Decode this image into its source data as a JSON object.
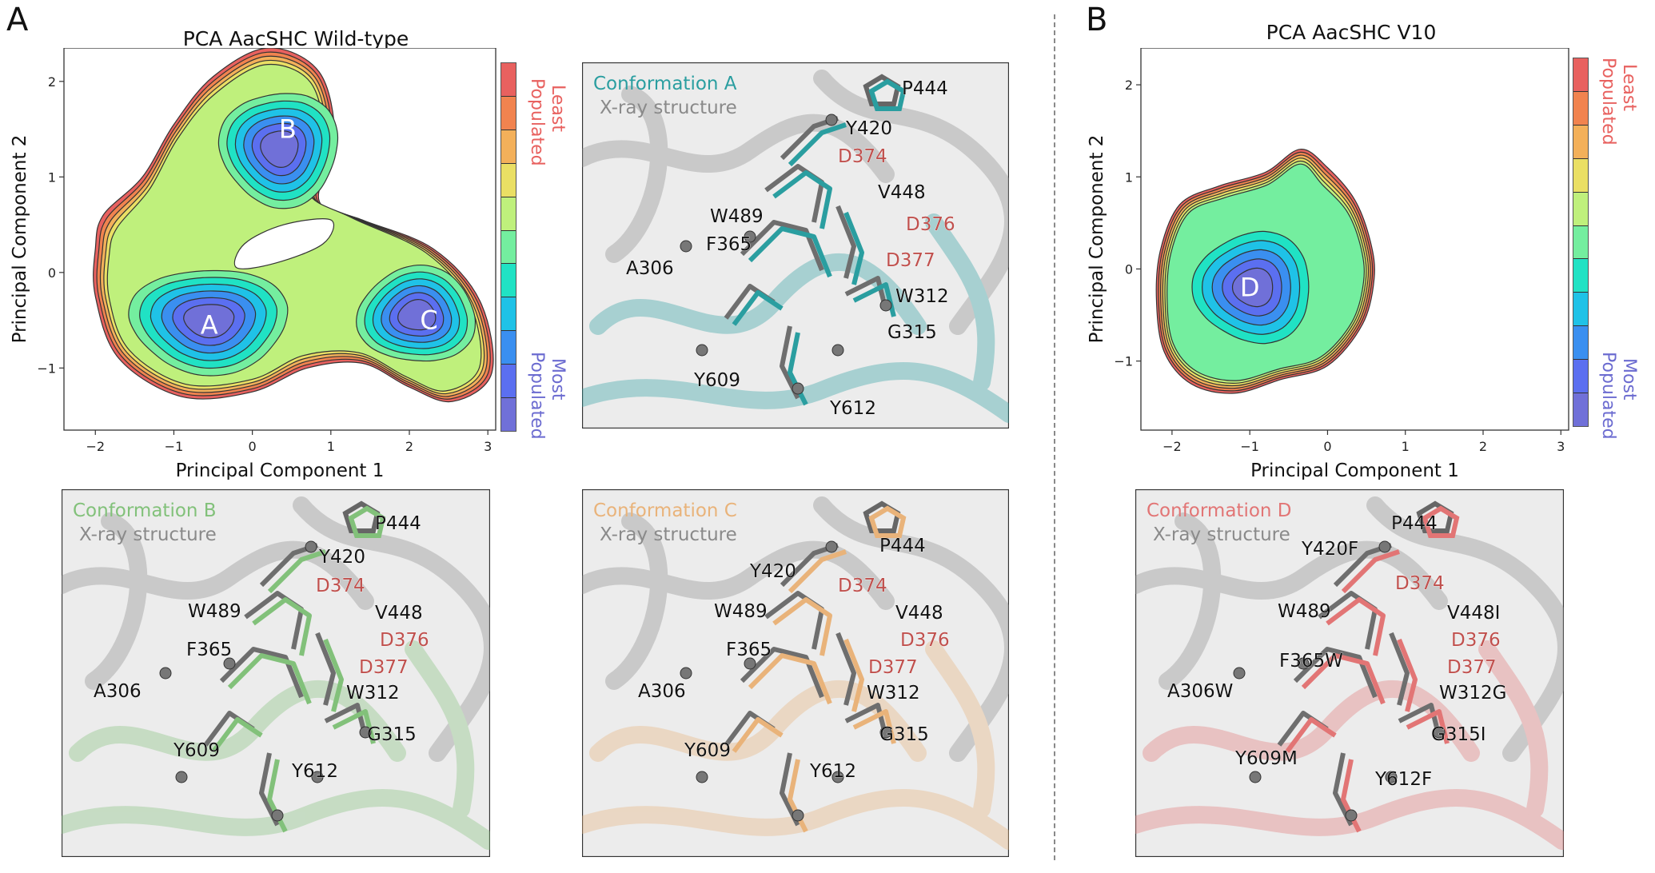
{
  "figure": {
    "panel_a_letter": "A",
    "panel_b_letter": "B",
    "pca_wt_title": "PCA AacSHC Wild-type",
    "pca_v10_title": "PCA AacSHC V10",
    "colorbar": {
      "top_label_1": "Least",
      "top_label_2": "Populated",
      "bottom_label_1": "Most",
      "bottom_label_2": "Populated",
      "colors": [
        "#e8615f",
        "#f1834f",
        "#f3b05a",
        "#eadf64",
        "#bff07c",
        "#74ee9f",
        "#20e2c4",
        "#1fc2e7",
        "#3a8ff0",
        "#5b6ff0",
        "#7070d8"
      ]
    },
    "contour_colors": [
      "#e8615f",
      "#f1834f",
      "#f3b05a",
      "#eadf64",
      "#bff07c",
      "#74ee9f",
      "#20e2c4",
      "#1fc2e7",
      "#3a8ff0",
      "#5b6ff0",
      "#7070d8"
    ],
    "structure_colors": {
      "A": "#2a9ea0",
      "B": "#82c17a",
      "C": "#e9b37a",
      "D": "#e27575",
      "xray": "#8a8a8a",
      "red_label": "#c0504d"
    }
  },
  "chart_data": [
    {
      "type": "contour",
      "title": "PCA AacSHC Wild-type",
      "xlabel": "Principal Component 1",
      "ylabel": "Principal Component 2",
      "xlim": [
        -2.4,
        3.1
      ],
      "ylim": [
        -1.65,
        2.35
      ],
      "xticks": [
        -2,
        -1,
        0,
        1,
        2,
        3
      ],
      "yticks": [
        -1,
        0,
        1,
        2
      ],
      "xtick_labels": [
        "−2",
        "−1",
        "0",
        "1",
        "2",
        "3"
      ],
      "ytick_labels": [
        "−1",
        "0",
        "1",
        "2"
      ],
      "levels": 11,
      "basins": [
        {
          "label": "A",
          "x": -0.55,
          "y": -0.55
        },
        {
          "label": "B",
          "x": 0.45,
          "y": 1.5
        },
        {
          "label": "C",
          "x": 2.25,
          "y": -0.5
        }
      ]
    },
    {
      "type": "contour",
      "title": "PCA AacSHC V10",
      "xlabel": "Principal Component 1",
      "ylabel": "Principal Component 2",
      "xlim": [
        -2.4,
        3.1
      ],
      "ylim": [
        -1.75,
        2.4
      ],
      "xticks": [
        -2,
        -1,
        0,
        1,
        2,
        3
      ],
      "yticks": [
        -1,
        0,
        1,
        2
      ],
      "xtick_labels": [
        "−2",
        "−1",
        "0",
        "1",
        "2",
        "3"
      ],
      "ytick_labels": [
        "−1",
        "0",
        "1",
        "2"
      ],
      "levels": 11,
      "basins": [
        {
          "label": "D",
          "x": -1.0,
          "y": -0.2
        }
      ]
    }
  ],
  "structures": [
    {
      "id": "conf-a",
      "legend_1": "Conformation A",
      "legend_2": "X-ray structure",
      "labels": [
        {
          "text": "P444",
          "kind": "black"
        },
        {
          "text": "Y420",
          "kind": "black"
        },
        {
          "text": "D374",
          "kind": "red"
        },
        {
          "text": "V448",
          "kind": "black"
        },
        {
          "text": "D376",
          "kind": "red"
        },
        {
          "text": "W489",
          "kind": "black"
        },
        {
          "text": "F365",
          "kind": "black"
        },
        {
          "text": "D377",
          "kind": "red"
        },
        {
          "text": "A306",
          "kind": "black"
        },
        {
          "text": "W312",
          "kind": "black"
        },
        {
          "text": "G315",
          "kind": "black"
        },
        {
          "text": "Y609",
          "kind": "black"
        },
        {
          "text": "Y612",
          "kind": "black"
        }
      ]
    },
    {
      "id": "conf-b",
      "legend_1": "Conformation B",
      "legend_2": "X-ray structure",
      "labels": [
        {
          "text": "P444",
          "kind": "black"
        },
        {
          "text": "Y420",
          "kind": "black"
        },
        {
          "text": "D374",
          "kind": "red"
        },
        {
          "text": "W489",
          "kind": "black"
        },
        {
          "text": "V448",
          "kind": "black"
        },
        {
          "text": "D376",
          "kind": "red"
        },
        {
          "text": "F365",
          "kind": "black"
        },
        {
          "text": "D377",
          "kind": "red"
        },
        {
          "text": "A306",
          "kind": "black"
        },
        {
          "text": "W312",
          "kind": "black"
        },
        {
          "text": "G315",
          "kind": "black"
        },
        {
          "text": "Y609",
          "kind": "black"
        },
        {
          "text": "Y612",
          "kind": "black"
        }
      ]
    },
    {
      "id": "conf-c",
      "legend_1": "Conformation C",
      "legend_2": "X-ray structure",
      "labels": [
        {
          "text": "P444",
          "kind": "black"
        },
        {
          "text": "Y420",
          "kind": "black"
        },
        {
          "text": "D374",
          "kind": "red"
        },
        {
          "text": "W489",
          "kind": "black"
        },
        {
          "text": "V448",
          "kind": "black"
        },
        {
          "text": "D376",
          "kind": "red"
        },
        {
          "text": "F365",
          "kind": "black"
        },
        {
          "text": "D377",
          "kind": "red"
        },
        {
          "text": "A306",
          "kind": "black"
        },
        {
          "text": "W312",
          "kind": "black"
        },
        {
          "text": "G315",
          "kind": "black"
        },
        {
          "text": "Y609",
          "kind": "black"
        },
        {
          "text": "Y612",
          "kind": "black"
        }
      ]
    },
    {
      "id": "conf-d",
      "legend_1": "Conformation D",
      "legend_2": "X-ray structure",
      "labels": [
        {
          "text": "P444",
          "kind": "black"
        },
        {
          "text": "Y420F",
          "kind": "black"
        },
        {
          "text": "D374",
          "kind": "red"
        },
        {
          "text": "W489",
          "kind": "black"
        },
        {
          "text": "V448I",
          "kind": "black"
        },
        {
          "text": "D376",
          "kind": "red"
        },
        {
          "text": "D377",
          "kind": "red"
        },
        {
          "text": "F365W",
          "kind": "black"
        },
        {
          "text": "A306W",
          "kind": "black"
        },
        {
          "text": "W312G",
          "kind": "black"
        },
        {
          "text": "G315I",
          "kind": "black"
        },
        {
          "text": "Y609M",
          "kind": "black"
        },
        {
          "text": "Y612F",
          "kind": "black"
        }
      ]
    }
  ]
}
